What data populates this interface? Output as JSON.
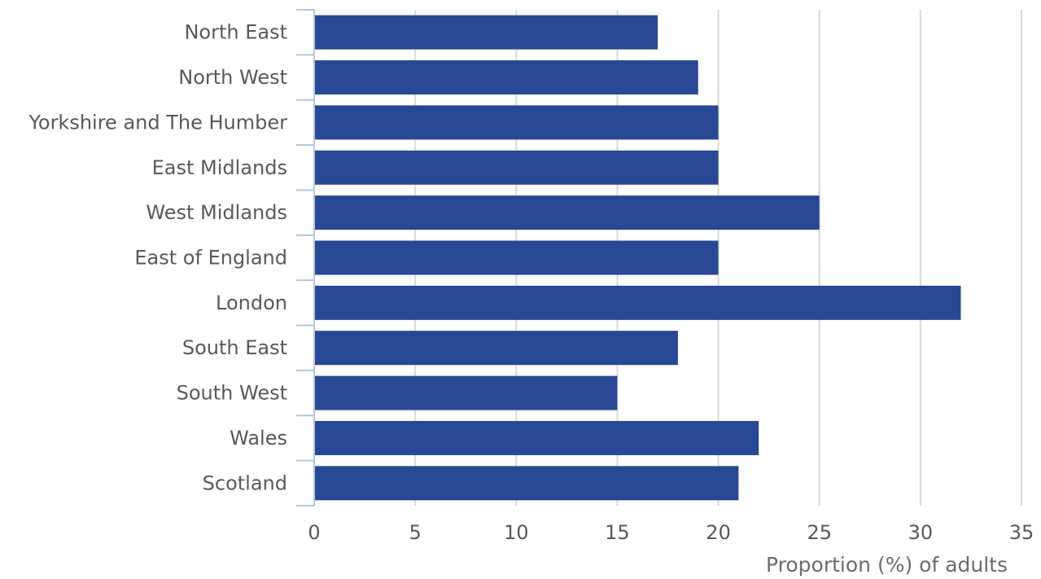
{
  "chart_data": {
    "type": "bar",
    "orientation": "horizontal",
    "title": "",
    "xlabel": "Proportion (%) of adults",
    "ylabel": "",
    "categories": [
      "North East",
      "North West",
      "Yorkshire and The Humber",
      "East Midlands",
      "West Midlands",
      "East of England",
      "London",
      "South East",
      "South West",
      "Wales",
      "Scotland"
    ],
    "values": [
      17,
      19,
      20,
      20,
      25,
      20,
      32,
      18,
      15,
      22,
      21
    ],
    "xlim": [
      0,
      35
    ],
    "xticks": [
      "0",
      "5",
      "10",
      "15",
      "20",
      "25",
      "30",
      "35"
    ],
    "grid": "vertical",
    "legend": "none",
    "colors": {
      "bar": "#284896",
      "grid": "#d9d9d9",
      "axis": "#b4c7dc",
      "text": "#595959"
    }
  }
}
